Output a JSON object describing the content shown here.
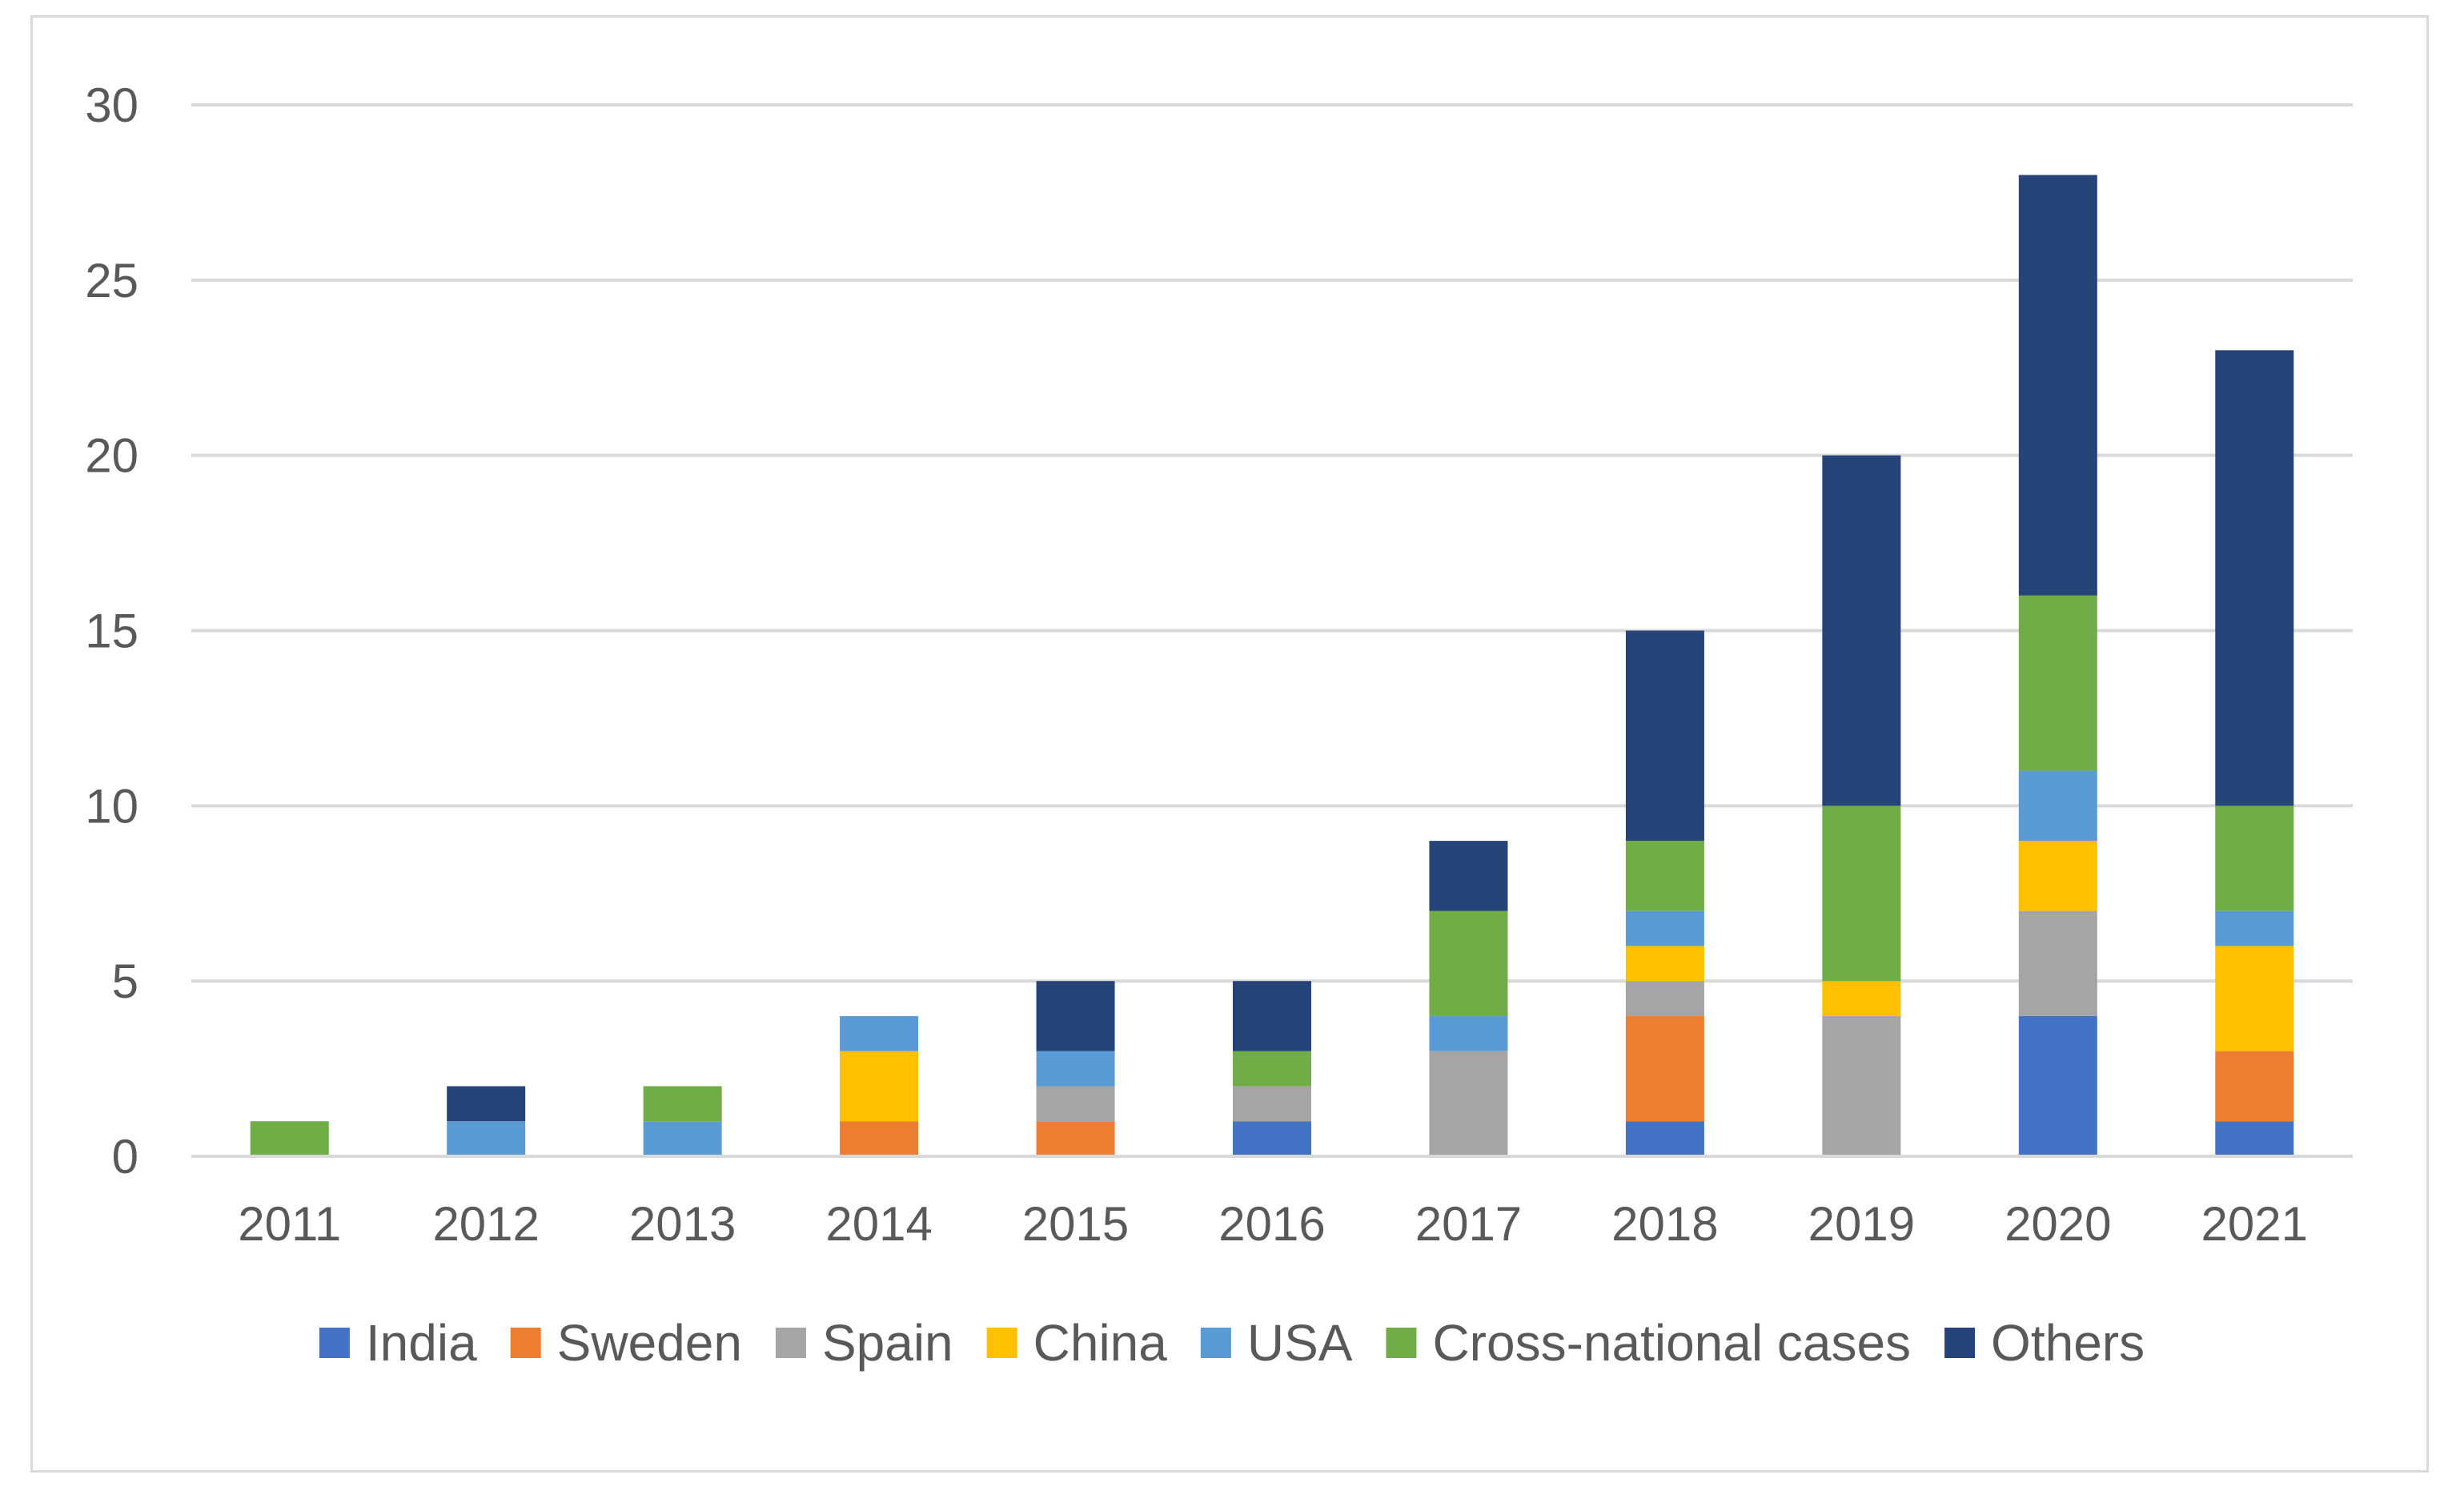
{
  "chart_data": {
    "type": "bar",
    "stacked": true,
    "title": "",
    "xlabel": "",
    "ylabel": "",
    "ylim": [
      0,
      30
    ],
    "yticks": [
      0,
      5,
      10,
      15,
      20,
      25,
      30
    ],
    "grid": true,
    "legend_position": "bottom",
    "categories": [
      "2011",
      "2012",
      "2013",
      "2014",
      "2015",
      "2016",
      "2017",
      "2018",
      "2019",
      "2020",
      "2021"
    ],
    "series": [
      {
        "name": "India",
        "color": "#4472C4",
        "values": [
          0,
          0,
          0,
          0,
          0,
          1,
          0,
          1,
          0,
          4,
          1
        ]
      },
      {
        "name": "Sweden",
        "color": "#ED7D31",
        "values": [
          0,
          0,
          0,
          1,
          1,
          0,
          0,
          3,
          0,
          0,
          2
        ]
      },
      {
        "name": "Spain",
        "color": "#A5A5A5",
        "values": [
          0,
          0,
          0,
          0,
          1,
          1,
          3,
          1,
          4,
          3,
          0
        ]
      },
      {
        "name": "China",
        "color": "#FFC000",
        "values": [
          0,
          0,
          0,
          2,
          0,
          0,
          0,
          1,
          1,
          2,
          3
        ]
      },
      {
        "name": "USA",
        "color": "#5B9BD5",
        "values": [
          0,
          1,
          1,
          1,
          1,
          0,
          1,
          1,
          0,
          2,
          1
        ]
      },
      {
        "name": "Cross-national cases",
        "color": "#70AD47",
        "values": [
          1,
          0,
          1,
          0,
          0,
          1,
          3,
          2,
          5,
          5,
          3
        ]
      },
      {
        "name": "Others",
        "color": "#264478",
        "values": [
          0,
          1,
          0,
          0,
          2,
          2,
          2,
          6,
          10,
          12,
          13
        ]
      }
    ]
  }
}
